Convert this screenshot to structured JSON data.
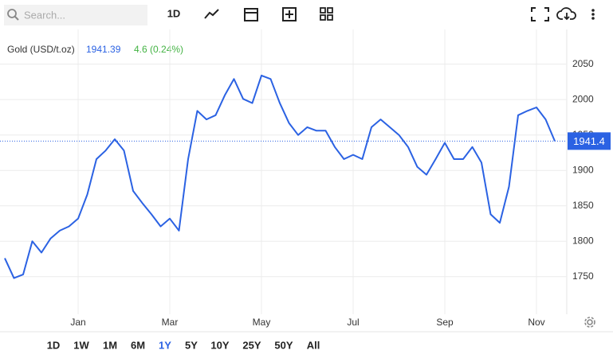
{
  "toolbar": {
    "search_placeholder": "Search...",
    "interval": "1D"
  },
  "chart_data": {
    "type": "line",
    "title": "Gold (USD/t.oz)",
    "last_value": 1941.39,
    "change_label": "4.6 (0.24%)",
    "price_tag": "1941.4",
    "color": "#2b62e3",
    "change_color": "#43b343",
    "grid": true,
    "categories": [
      null,
      null,
      null,
      null,
      null,
      null,
      null,
      null,
      "Jan",
      null,
      null,
      null,
      null,
      null,
      null,
      null,
      null,
      null,
      "Mar",
      null,
      null,
      null,
      null,
      null,
      null,
      null,
      null,
      null,
      "May",
      null,
      null,
      null,
      null,
      null,
      null,
      null,
      null,
      null,
      "Jul",
      null,
      null,
      null,
      null,
      null,
      null,
      null,
      null,
      null,
      "Sep",
      null,
      null,
      null,
      null,
      null,
      null,
      null,
      null,
      null,
      "Nov",
      null,
      null
    ],
    "values": [
      1776,
      1748,
      1753,
      1800,
      1784,
      1804,
      1815,
      1821,
      1832,
      1866,
      1916,
      1928,
      1944,
      1928,
      1871,
      1854,
      1838,
      1821,
      1832,
      1815,
      1916,
      1984,
      1972,
      1978,
      2006,
      2029,
      2001,
      1995,
      2034,
      2029,
      1995,
      1967,
      1950,
      1961,
      1956,
      1956,
      1933,
      1916,
      1922,
      1916,
      1961,
      1972,
      1961,
      1950,
      1933,
      1905,
      1894,
      1916,
      1939,
      1916,
      1916,
      1933,
      1911,
      1838,
      1826,
      1877,
      1978,
      1984,
      1989,
      1972,
      1941.39
    ],
    "ylim": [
      1697,
      2099
    ],
    "yticks": [
      1750,
      1800,
      1850,
      1900,
      1950,
      2000,
      2050
    ]
  },
  "ranges": [
    "1D",
    "1W",
    "1M",
    "6M",
    "1Y",
    "5Y",
    "10Y",
    "25Y",
    "50Y",
    "All"
  ],
  "active_range": "1Y"
}
